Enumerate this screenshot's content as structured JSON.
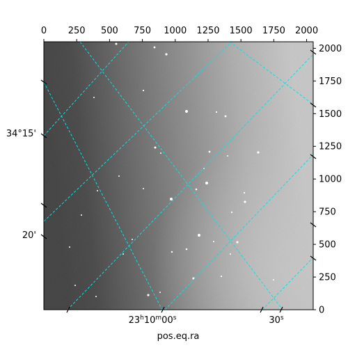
{
  "figure": {
    "xlabel": "pos.eq.ra",
    "pixel_axes": {
      "x_ticks": [
        "0",
        "250",
        "500",
        "750",
        "1000",
        "1250",
        "1500",
        "1750",
        "2000"
      ],
      "x_values": [
        0,
        250,
        500,
        750,
        1000,
        1250,
        1500,
        1750,
        2000
      ],
      "x_range": [
        0,
        2050
      ],
      "y_ticks": [
        "0",
        "250",
        "500",
        "750",
        "1000",
        "1250",
        "1500",
        "1750",
        "2000"
      ],
      "y_values": [
        0,
        250,
        500,
        750,
        1000,
        1250,
        1500,
        1750,
        2000
      ],
      "y_range": [
        0,
        2050
      ]
    },
    "world_axes": {
      "ra_labels": [
        {
          "hours": "23",
          "minutes": "10",
          "seconds": "00"
        },
        {
          "seconds": "30"
        }
      ],
      "dec_labels": [
        {
          "text": "34°15'"
        },
        {
          "text": "20'"
        }
      ]
    },
    "grid_color": "#00e5e5",
    "image_colormap": "gray"
  }
}
